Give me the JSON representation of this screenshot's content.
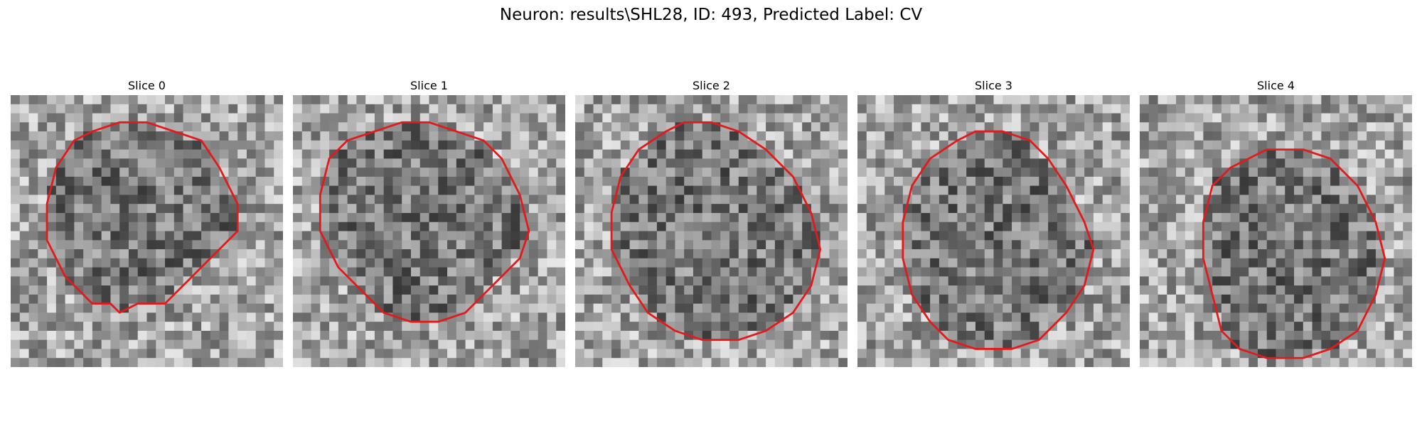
{
  "figure": {
    "title": "Neuron: results\\SHL28, ID: 493, Predicted Label: CV",
    "contour_color": "#e31a1c",
    "colormap": "gray"
  },
  "panels": [
    {
      "title": "Slice 0",
      "contour": [
        [
          15,
          3
        ],
        [
          18,
          4
        ],
        [
          21,
          5
        ],
        [
          23,
          8
        ],
        [
          25,
          12
        ],
        [
          25,
          15
        ],
        [
          22,
          18
        ],
        [
          19,
          21
        ],
        [
          17,
          23
        ],
        [
          14,
          23
        ],
        [
          12,
          24
        ],
        [
          11,
          23
        ],
        [
          9,
          23
        ],
        [
          6,
          20
        ],
        [
          4,
          16
        ],
        [
          4,
          12
        ],
        [
          5,
          8
        ],
        [
          7,
          5
        ],
        [
          9,
          4
        ],
        [
          12,
          3
        ]
      ]
    },
    {
      "title": "Slice 1",
      "contour": [
        [
          15,
          3
        ],
        [
          18,
          4
        ],
        [
          21,
          5
        ],
        [
          23,
          7
        ],
        [
          25,
          11
        ],
        [
          26,
          15
        ],
        [
          25,
          18
        ],
        [
          22,
          21
        ],
        [
          19,
          24
        ],
        [
          16,
          25
        ],
        [
          13,
          25
        ],
        [
          10,
          24
        ],
        [
          8,
          22
        ],
        [
          5,
          19
        ],
        [
          3,
          15
        ],
        [
          3,
          11
        ],
        [
          4,
          7
        ],
        [
          6,
          5
        ],
        [
          9,
          4
        ],
        [
          12,
          3
        ]
      ]
    },
    {
      "title": "Slice 2",
      "contour": [
        [
          15,
          3
        ],
        [
          18,
          4
        ],
        [
          21,
          6
        ],
        [
          24,
          9
        ],
        [
          26,
          13
        ],
        [
          27,
          17
        ],
        [
          26,
          21
        ],
        [
          24,
          24
        ],
        [
          21,
          26
        ],
        [
          18,
          27
        ],
        [
          14,
          27
        ],
        [
          11,
          26
        ],
        [
          8,
          24
        ],
        [
          6,
          21
        ],
        [
          4,
          17
        ],
        [
          4,
          13
        ],
        [
          5,
          9
        ],
        [
          7,
          6
        ],
        [
          10,
          4
        ],
        [
          12,
          3
        ]
      ]
    },
    {
      "title": "Slice 3",
      "contour": [
        [
          16,
          4
        ],
        [
          19,
          5
        ],
        [
          21,
          7
        ],
        [
          23,
          10
        ],
        [
          25,
          14
        ],
        [
          26,
          17
        ],
        [
          25,
          21
        ],
        [
          23,
          24
        ],
        [
          20,
          27
        ],
        [
          17,
          28
        ],
        [
          13,
          28
        ],
        [
          10,
          27
        ],
        [
          8,
          25
        ],
        [
          6,
          22
        ],
        [
          5,
          18
        ],
        [
          5,
          14
        ],
        [
          6,
          10
        ],
        [
          8,
          7
        ],
        [
          11,
          5
        ],
        [
          13,
          4
        ]
      ]
    },
    {
      "title": "Slice 4",
      "contour": [
        [
          15,
          6
        ],
        [
          18,
          6
        ],
        [
          21,
          7
        ],
        [
          24,
          10
        ],
        [
          26,
          14
        ],
        [
          27,
          18
        ],
        [
          26,
          22
        ],
        [
          24,
          26
        ],
        [
          21,
          28
        ],
        [
          18,
          29
        ],
        [
          14,
          29
        ],
        [
          11,
          28
        ],
        [
          9,
          26
        ],
        [
          8,
          22
        ],
        [
          7,
          18
        ],
        [
          7,
          14
        ],
        [
          8,
          10
        ],
        [
          10,
          8
        ],
        [
          12,
          7
        ],
        [
          14,
          6
        ]
      ]
    }
  ]
}
